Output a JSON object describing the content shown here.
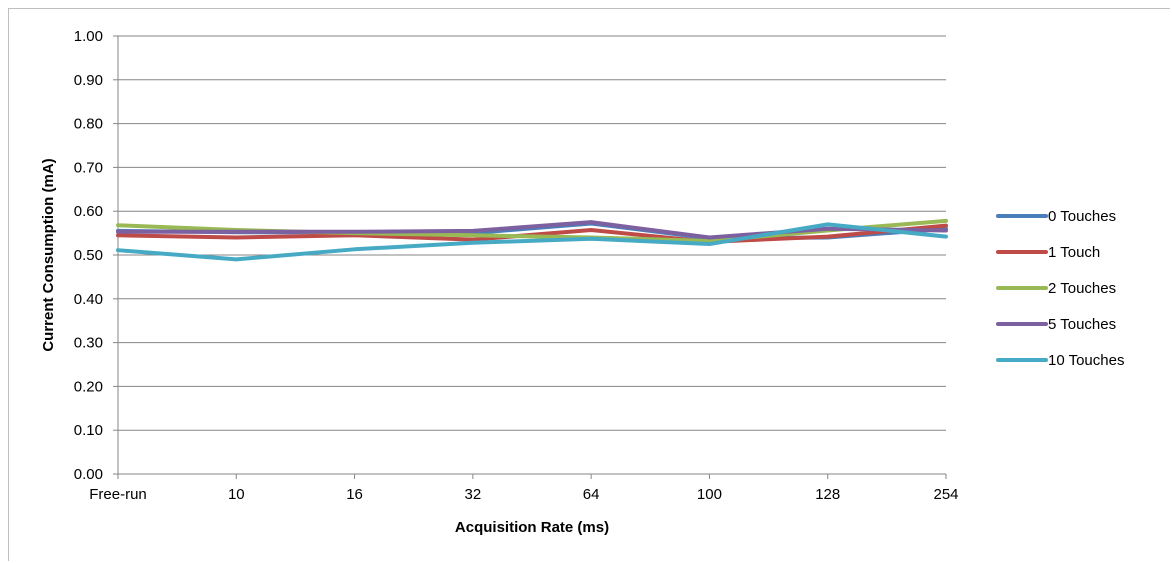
{
  "chart_data": {
    "type": "line",
    "title": "",
    "xlabel": "Acquisition Rate (ms)",
    "ylabel": "Current Consumption (mA)",
    "categories": [
      "Free-run",
      "10",
      "16",
      "32",
      "64",
      "100",
      "128",
      "254"
    ],
    "ylim": [
      0,
      1
    ],
    "yticks": [
      "0.00",
      "0.10",
      "0.20",
      "0.30",
      "0.40",
      "0.50",
      "0.60",
      "0.70",
      "0.80",
      "0.90",
      "1.00"
    ],
    "grid": true,
    "legend_position": "right",
    "series": [
      {
        "name": "0 Touches",
        "color": "#4a7ebb",
        "values": [
          0.555,
          0.552,
          0.552,
          0.55,
          0.572,
          0.538,
          0.54,
          0.56
        ]
      },
      {
        "name": "1 Touch",
        "color": "#be4b48",
        "values": [
          0.545,
          0.54,
          0.545,
          0.535,
          0.557,
          0.53,
          0.542,
          0.567
        ]
      },
      {
        "name": "2 Touches",
        "color": "#98b954",
        "values": [
          0.568,
          0.557,
          0.55,
          0.545,
          0.54,
          0.532,
          0.556,
          0.578
        ]
      },
      {
        "name": "5 Touches",
        "color": "#7d60a0",
        "values": [
          0.553,
          0.553,
          0.553,
          0.555,
          0.575,
          0.54,
          0.56,
          0.556
        ]
      },
      {
        "name": "10 Touches",
        "color": "#46aac5",
        "values": [
          0.511,
          0.49,
          0.513,
          0.528,
          0.537,
          0.525,
          0.57,
          0.542
        ]
      }
    ]
  }
}
